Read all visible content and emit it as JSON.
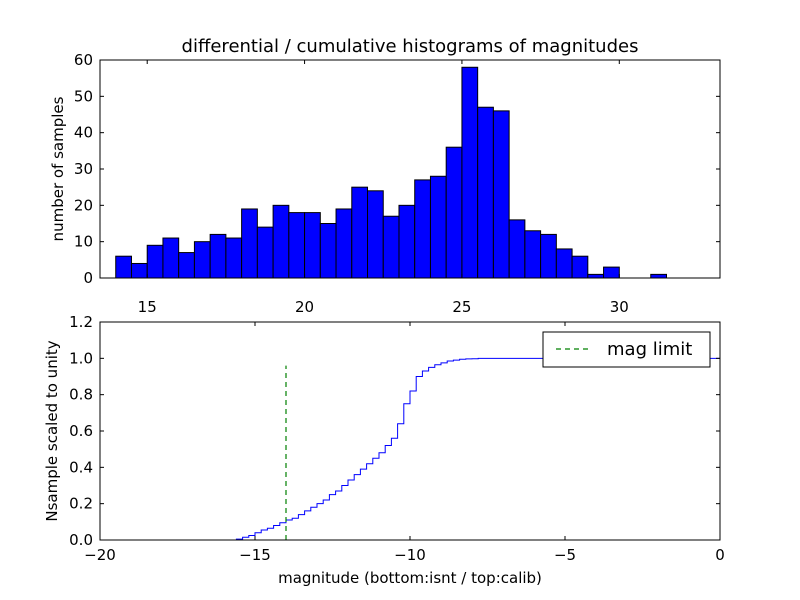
{
  "chart_data": [
    {
      "type": "bar",
      "title": "differential / cumulative histograms of magnitudes",
      "xlabel": "",
      "ylabel": "number of samples",
      "xlim": [
        13.5,
        33.2
      ],
      "ylim": [
        0,
        60
      ],
      "xticks": [
        15,
        20,
        25,
        30
      ],
      "yticks": [
        0,
        10,
        20,
        30,
        40,
        50,
        60
      ],
      "bar_color": "#0000ff",
      "bins_start": 14.0,
      "bin_width": 0.5,
      "values": [
        6,
        4,
        9,
        11,
        7,
        10,
        12,
        11,
        19,
        14,
        20,
        18,
        18,
        15,
        19,
        25,
        24,
        17,
        20,
        27,
        28,
        36,
        58,
        47,
        46,
        16,
        13,
        12,
        8,
        6,
        1,
        3,
        0,
        0,
        1,
        0
      ]
    },
    {
      "type": "line",
      "title": "",
      "xlabel": "magnitude (bottom:isnt / top:calib)",
      "ylabel": "Nsample scaled to unity",
      "xlim": [
        -20,
        0
      ],
      "ylim": [
        0,
        1.2
      ],
      "xticks": [
        -20,
        -15,
        -10,
        -5,
        0
      ],
      "xtick_labels": [
        "−20",
        "−15",
        "−10",
        "−5",
        "0"
      ],
      "yticks": [
        0.0,
        0.2,
        0.4,
        0.6,
        0.8,
        1.0,
        1.2
      ],
      "ytick_labels": [
        "0.0",
        "0.2",
        "0.4",
        "0.6",
        "0.8",
        "1.0",
        "1.2"
      ],
      "series": [
        {
          "name": "cumulative",
          "color": "#0000ff",
          "step": true,
          "x": [
            -20.0,
            -15.6,
            -15.4,
            -15.2,
            -15.0,
            -14.8,
            -14.6,
            -14.4,
            -14.2,
            -14.0,
            -13.8,
            -13.6,
            -13.4,
            -13.2,
            -13.0,
            -12.8,
            -12.6,
            -12.4,
            -12.2,
            -12.0,
            -11.8,
            -11.6,
            -11.4,
            -11.2,
            -11.0,
            -10.8,
            -10.6,
            -10.4,
            -10.2,
            -10.0,
            -9.8,
            -9.6,
            -9.4,
            -9.2,
            -9.0,
            -8.8,
            -8.6,
            -8.4,
            -8.2,
            -8.0,
            -7.8,
            -7.6,
            -7.4,
            -7.2,
            -7.0,
            -6.0,
            0.0
          ],
          "y": [
            0.0,
            0.005,
            0.015,
            0.025,
            0.04,
            0.055,
            0.065,
            0.08,
            0.095,
            0.11,
            0.12,
            0.14,
            0.16,
            0.18,
            0.2,
            0.22,
            0.25,
            0.27,
            0.3,
            0.33,
            0.36,
            0.39,
            0.42,
            0.45,
            0.48,
            0.52,
            0.56,
            0.64,
            0.75,
            0.82,
            0.9,
            0.93,
            0.95,
            0.965,
            0.975,
            0.985,
            0.99,
            0.995,
            0.997,
            0.998,
            1.0,
            1.0,
            1.0,
            1.0,
            1.0,
            1.0,
            1.0
          ]
        },
        {
          "name": "mag limit",
          "color": "#008000",
          "dashed": true,
          "x": [
            -14.0,
            -14.0
          ],
          "y": [
            0.0,
            0.96
          ]
        }
      ],
      "legend": {
        "position": "top-right",
        "entries": [
          "mag limit"
        ]
      }
    }
  ]
}
